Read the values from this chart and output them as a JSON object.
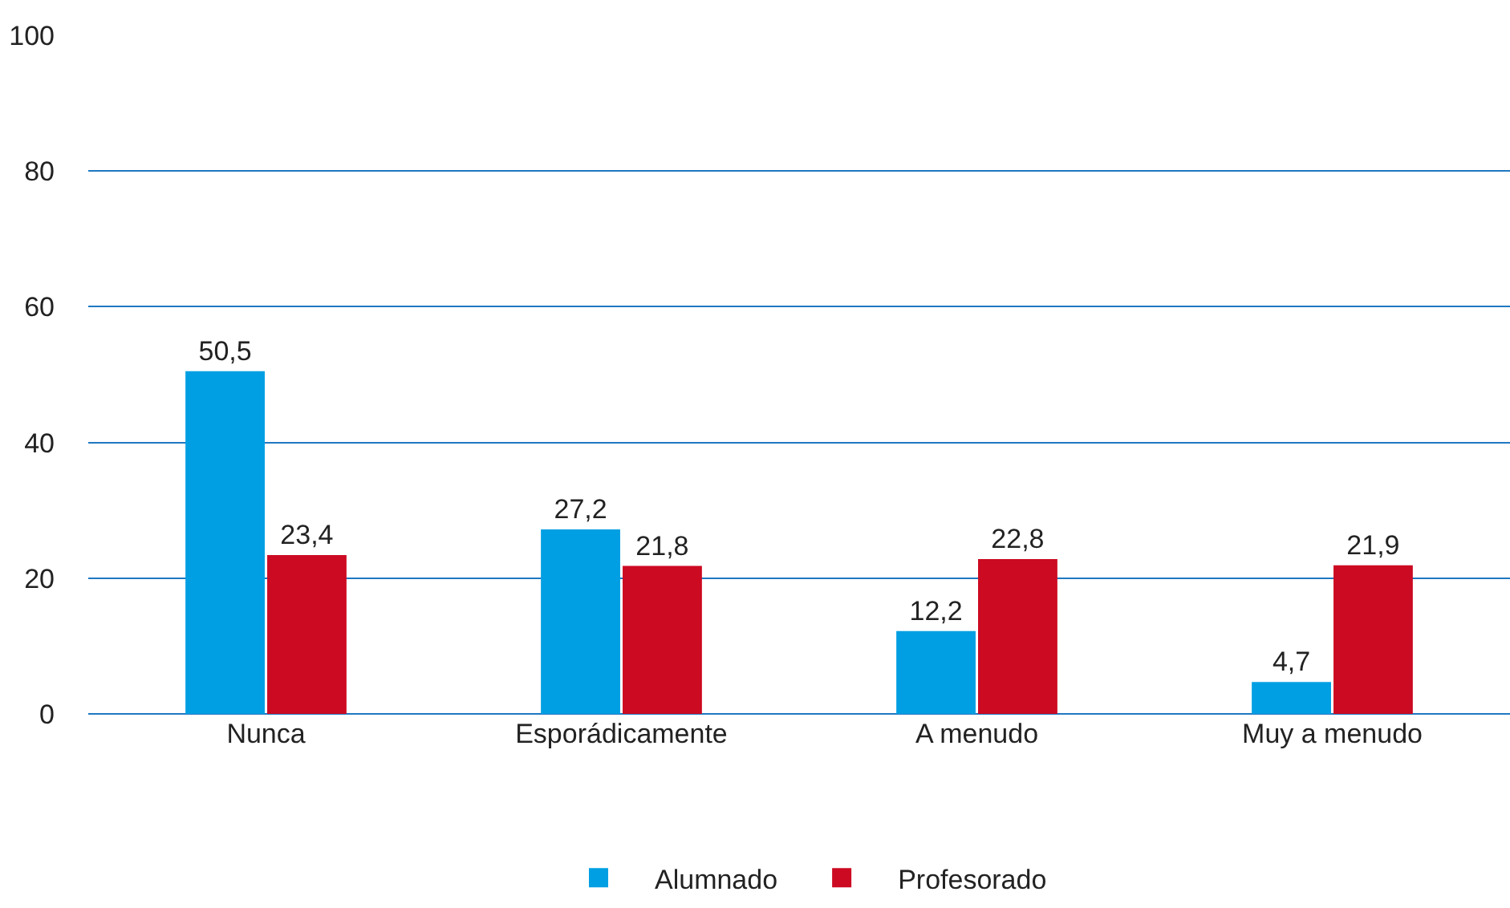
{
  "chart_data": {
    "type": "bar",
    "categories": [
      "Nunca",
      "Esporádicamente",
      "A menudo",
      "Muy a menudo"
    ],
    "series": [
      {
        "name": "Alumnado",
        "color": "#009fe3",
        "values": [
          50.5,
          27.2,
          12.2,
          4.7
        ],
        "value_labels": [
          "50,5",
          "27,2",
          "12,2",
          "4,7"
        ]
      },
      {
        "name": "Profesorado",
        "color": "#cc0a22",
        "values": [
          23.4,
          21.8,
          22.8,
          21.9
        ],
        "value_labels": [
          "23,4",
          "21,8",
          "22,8",
          "21,9"
        ]
      }
    ],
    "ylim": [
      0,
      100
    ],
    "yticks": [
      0,
      20,
      40,
      60,
      80,
      100
    ],
    "grid": "y",
    "legend": "bottom"
  }
}
